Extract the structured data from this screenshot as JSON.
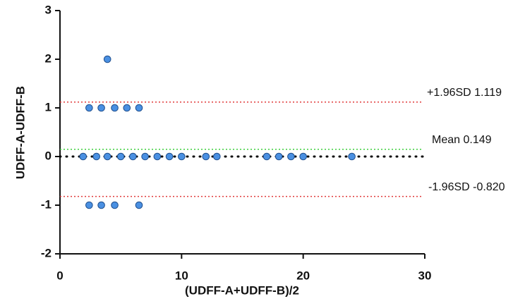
{
  "chart_data": {
    "type": "scatter",
    "xlabel": "(UDFF-A+UDFF-B)/2",
    "ylabel": "UDFF-A-UDFF-B",
    "xlim": [
      0,
      30
    ],
    "ylim": [
      -2,
      3
    ],
    "xticks": [
      0,
      10,
      20,
      30
    ],
    "yticks": [
      -2,
      -1,
      0,
      1,
      2,
      3
    ],
    "series": [
      {
        "color": "#4a90e2",
        "x": [
          3.9,
          2.4,
          3.4,
          4.5,
          5.5,
          6.5,
          1.9,
          3.0,
          3.9,
          5.0,
          6.0,
          7.0,
          8.0,
          9.0,
          10.0,
          12.0,
          12.9,
          17.0,
          18.0,
          19.0,
          20.0,
          24.0,
          2.4,
          3.4,
          4.5,
          6.5
        ],
        "values": [
          2,
          1,
          1,
          1,
          1,
          1,
          0,
          0,
          0,
          0,
          0,
          0,
          0,
          0,
          0,
          0,
          0,
          0,
          0,
          0,
          0,
          0,
          -1,
          -1,
          -1,
          -1
        ]
      }
    ],
    "reference_lines": [
      {
        "label": "+1.96SD 1.119",
        "value": 1.119,
        "color": "#e03a3a"
      },
      {
        "label": "Mean 0.149",
        "value": 0.149,
        "color": "#3ccf3c"
      },
      {
        "label": "-1.96SD -0.820",
        "value": -0.82,
        "color": "#e03a3a"
      }
    ]
  }
}
